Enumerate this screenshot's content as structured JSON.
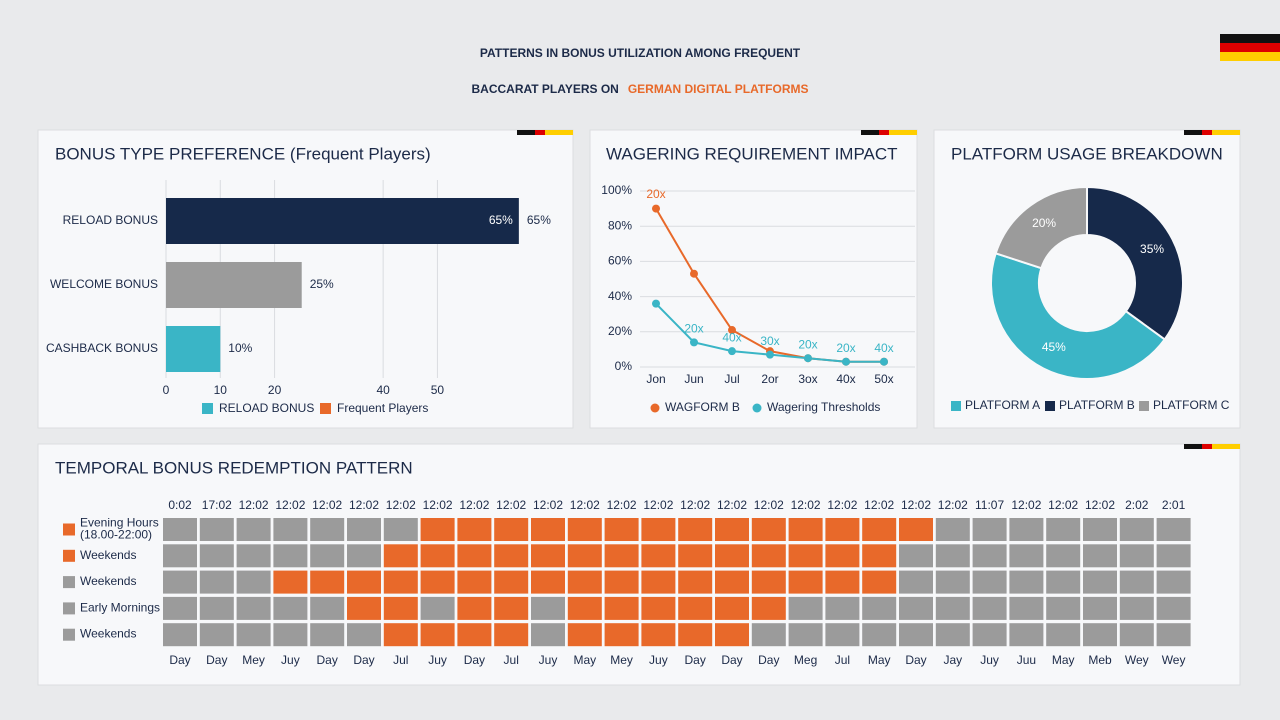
{
  "title": {
    "line1": "PATTERNS IN BONUS UTILIZATION AMONG FREQUENT",
    "line2": "BACCARAT PLAYERS ON",
    "highlight": "GERMAN DIGITAL PLATFORMS"
  },
  "chart_data": [
    {
      "type": "hbar",
      "title": "BONUS TYPE PREFERENCE (Frequent Players)",
      "categories": [
        "RELOAD BONUS",
        "WELCOME BONUS",
        "CASHBACK BONUS"
      ],
      "values": [
        65,
        25,
        10
      ],
      "value_labels": [
        "65%",
        "25%",
        "10%"
      ],
      "colors": [
        "#16294a",
        "#9b9b9b",
        "#3ab5c6"
      ],
      "xlim": [
        0,
        70
      ],
      "xticks": [
        0,
        10,
        20,
        40,
        50
      ],
      "grid": true,
      "legend": [
        {
          "name": "RELOAD BONUS",
          "color": "#3ab5c6"
        },
        {
          "name": "Frequent Players",
          "color": "#e8692a"
        }
      ]
    },
    {
      "type": "line",
      "title": "WAGERING REQUIREMENT IMPACT",
      "categories": [
        "Jon",
        "Jun",
        "Jul",
        "2or",
        "3ox",
        "40x",
        "50x"
      ],
      "series": [
        {
          "name": "WAGFORM B",
          "color": "#e8692a",
          "values": [
            90,
            53,
            21,
            9,
            5,
            3,
            3
          ]
        },
        {
          "name": "Wagering Thresholds",
          "color": "#3ab5c6",
          "values": [
            36,
            14,
            9,
            7,
            5,
            3,
            3
          ]
        }
      ],
      "annotations": [
        "20x",
        "20x",
        "40x",
        "30x",
        "20x",
        "20x",
        "40x"
      ],
      "ylim": [
        0,
        100
      ],
      "yticks": [
        {
          "value": 0,
          "label": "0%"
        },
        {
          "value": 20,
          "label": "20%"
        },
        {
          "value": 40,
          "label": "40%"
        },
        {
          "value": 60,
          "label": "60%"
        },
        {
          "value": 80,
          "label": "80%"
        },
        {
          "value": 100,
          "label": "100%"
        }
      ],
      "grid": true
    },
    {
      "type": "donut",
      "title": "PLATFORM USAGE BREAKDOWN",
      "categories": [
        "PLATFORM A",
        "PLATFORM B",
        "PLATFORM C"
      ],
      "values": [
        45,
        35,
        20
      ],
      "value_labels": [
        "45%",
        "35%",
        "20%"
      ],
      "colors": [
        "#3ab5c6",
        "#16294a",
        "#9b9b9b"
      ]
    },
    {
      "type": "heatmap",
      "title": "TEMPORAL BONUS REDEMPTION PATTERN",
      "rows": [
        [
          "Evening Hours",
          "(18.00-22:00)"
        ],
        [
          "Weekends"
        ],
        [
          "Weekends"
        ],
        [
          "Early Mornings"
        ],
        [
          "Weekends"
        ]
      ],
      "row_colors": [
        "#e8692a",
        "#e8692a",
        "#9b9b9b",
        "#9b9b9b",
        "#9b9b9b"
      ],
      "top_labels": [
        "0:02",
        "17:02",
        "12:02",
        "12:02",
        "12:02",
        "12:02",
        "12:02",
        "12:02",
        "12:02",
        "12:02",
        "12:02",
        "12:02",
        "12:02",
        "12:02",
        "12:02",
        "12:02",
        "12:02",
        "12:02",
        "12:02",
        "12:02",
        "12:02",
        "12:02",
        "11:07",
        "12:02",
        "12:02",
        "12:02",
        "2:02",
        "2:01"
      ],
      "bottom_labels": [
        "Day",
        "Day",
        "Mey",
        "Juy",
        "Day",
        "Day",
        "Jul",
        "Juy",
        "Day",
        "Jul",
        "Juy",
        "May",
        "Mey",
        "Juy",
        "Day",
        "Day",
        "Day",
        "Meg",
        "Jul",
        "May",
        "Day",
        "Jay",
        "Juy",
        "Juu",
        "May",
        "Meb",
        "Wey",
        "Wey"
      ],
      "colors": [
        "#9b9b9b",
        "#e8692a"
      ],
      "values": [
        [
          0,
          0,
          0,
          0,
          0,
          0,
          0,
          1,
          1,
          1,
          1,
          1,
          1,
          1,
          1,
          1,
          1,
          1,
          1,
          1,
          1,
          0,
          0,
          0,
          0,
          0,
          0,
          0
        ],
        [
          0,
          0,
          0,
          0,
          0,
          0,
          1,
          1,
          1,
          1,
          1,
          1,
          1,
          1,
          1,
          1,
          1,
          1,
          1,
          1,
          0,
          0,
          0,
          0,
          0,
          0,
          0,
          0
        ],
        [
          0,
          0,
          0,
          1,
          1,
          1,
          1,
          1,
          1,
          1,
          1,
          1,
          1,
          1,
          1,
          1,
          1,
          1,
          1,
          1,
          0,
          0,
          0,
          0,
          0,
          0,
          0,
          0
        ],
        [
          0,
          0,
          0,
          0,
          0,
          1,
          1,
          0,
          1,
          1,
          0,
          1,
          1,
          1,
          1,
          1,
          1,
          0,
          0,
          0,
          0,
          0,
          0,
          0,
          0,
          0,
          0,
          0
        ],
        [
          0,
          0,
          0,
          0,
          0,
          0,
          1,
          1,
          1,
          1,
          0,
          1,
          1,
          1,
          1,
          1,
          0,
          0,
          0,
          0,
          0,
          0,
          0,
          0,
          0,
          0,
          0,
          0
        ]
      ]
    }
  ]
}
